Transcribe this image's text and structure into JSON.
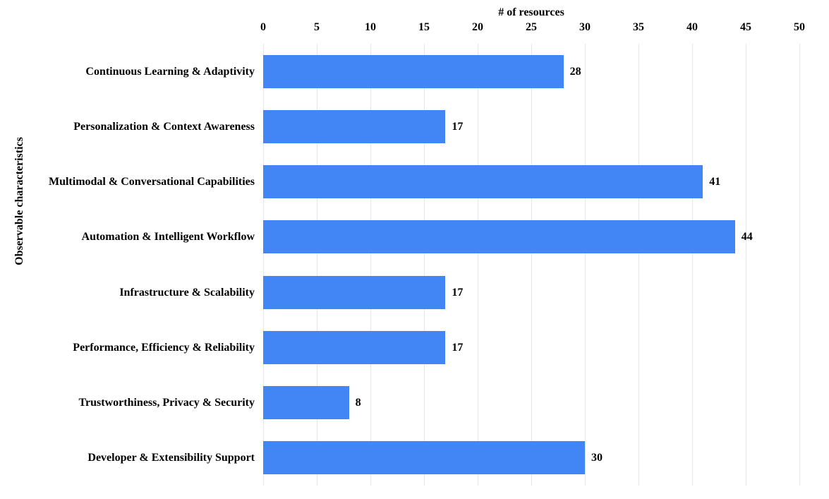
{
  "chart_data": {
    "type": "bar",
    "orientation": "horizontal",
    "xlabel": "# of resources",
    "ylabel": "Observable characteristics",
    "categories": [
      "Continuous Learning & Adaptivity",
      "Personalization & Context Awareness",
      "Multimodal & Conversational Capabilities",
      "Automation & Intelligent Workflow",
      "Infrastructure & Scalability",
      "Performance, Efficiency & Reliability",
      "Trustworthiness, Privacy & Security",
      "Developer & Extensibility Support"
    ],
    "values": [
      28,
      17,
      41,
      44,
      17,
      17,
      8,
      30
    ],
    "xlim": [
      0,
      50
    ],
    "xticks": [
      0,
      5,
      10,
      15,
      20,
      25,
      30,
      35,
      40,
      45,
      50
    ],
    "grid": true,
    "legend": "none",
    "data_labels": true,
    "colors": {
      "bar": "#4285F4",
      "gridline": "#e7e7e7",
      "text": "#000000",
      "background": "#ffffff"
    }
  }
}
